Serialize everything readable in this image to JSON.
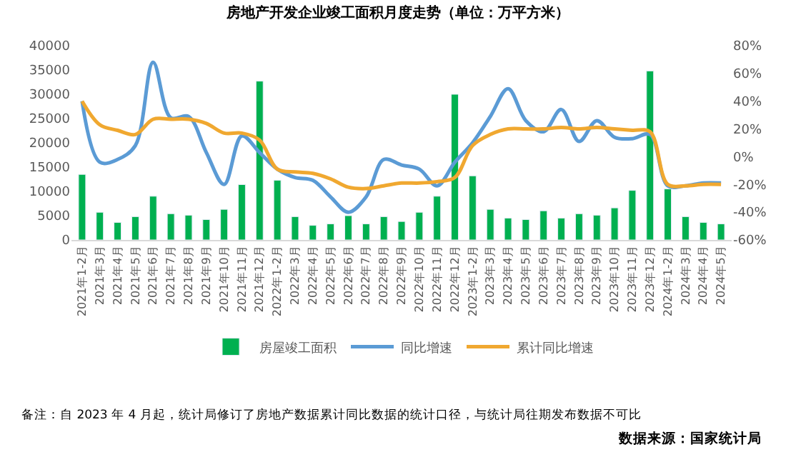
{
  "chart_data": {
    "type": "bar",
    "title": "房地产开发企业竣工面积月度走势（单位：万平方米）",
    "categories": [
      "2021年1-2月",
      "2021年3月",
      "2021年4月",
      "2021年5月",
      "2021年6月",
      "2021年7月",
      "2021年8月",
      "2021年9月",
      "2021年10月",
      "2021年11月",
      "2021年12月",
      "2022年1-2月",
      "2022年3月",
      "2022年4月",
      "2022年5月",
      "2022年6月",
      "2022年7月",
      "2022年8月",
      "2022年9月",
      "2022年10月",
      "2022年11月",
      "2022年12月",
      "2023年1-2月",
      "2023年3月",
      "2023年4月",
      "2023年5月",
      "2023年6月",
      "2023年7月",
      "2023年8月",
      "2023年9月",
      "2023年10月",
      "2023年11月",
      "2023年12月",
      "2024年1-2月",
      "2024年3月",
      "2024年4月",
      "2024年5月"
    ],
    "series": [
      {
        "name": "房屋竣工面积",
        "color": "#00b050",
        "values": [
          13500,
          5700,
          3600,
          4800,
          9000,
          5400,
          5100,
          4200,
          6300,
          11400,
          32700,
          12300,
          4800,
          3000,
          3300,
          5000,
          3300,
          4800,
          3800,
          5700,
          9000,
          30000,
          13200,
          6300,
          4500,
          4200,
          6000,
          4500,
          5400,
          5100,
          6600,
          10200,
          34800,
          10500,
          4800,
          3600,
          3300
        ]
      },
      {
        "name": "同比增速",
        "type": "line",
        "axis": "y2",
        "color": "#5b9bd5",
        "values": [
          40,
          -4,
          -2,
          8,
          68,
          28,
          29,
          3,
          -20,
          15,
          3,
          -9,
          -15,
          -17,
          -29,
          -40,
          -29,
          -2,
          -6,
          -9,
          -21,
          -4,
          10,
          29,
          49,
          26,
          18,
          34,
          11,
          26,
          14,
          13,
          16,
          -21,
          -21,
          -19,
          -19
        ]
      },
      {
        "name": "累计同比增速",
        "type": "line",
        "axis": "y2",
        "color": "#f0a830",
        "values": [
          40,
          23,
          19,
          16,
          27,
          27,
          27,
          24,
          17,
          17,
          12,
          -9,
          -11,
          -12,
          -16,
          -22,
          -23,
          -21,
          -19,
          -19,
          -18,
          -15,
          8,
          16,
          20,
          20,
          20,
          21,
          20,
          21,
          20,
          19,
          18,
          -20,
          -21,
          -20,
          -20
        ]
      }
    ],
    "ylim": [
      0,
      40000
    ],
    "yticks": [
      0,
      5000,
      10000,
      15000,
      20000,
      25000,
      30000,
      35000,
      40000
    ],
    "y2lim": [
      -60,
      80
    ],
    "y2ticks": [
      {
        "value": -60,
        "label": "-60%"
      },
      {
        "value": -40,
        "label": "-40%"
      },
      {
        "value": -20,
        "label": "-20%"
      },
      {
        "value": 0,
        "label": "0%"
      },
      {
        "value": 20,
        "label": "20%"
      },
      {
        "value": 40,
        "label": "40%"
      },
      {
        "value": 60,
        "label": "60%"
      },
      {
        "value": 80,
        "label": "80%"
      }
    ],
    "legend": "bottom",
    "marker": "none",
    "annotations": [
      "备注：自 2023 年 4 月起，统计局修订了房地产数据累计同比数据的统计口径，与统计局往期发布数据不可比",
      "数据来源：国家统计局"
    ]
  }
}
